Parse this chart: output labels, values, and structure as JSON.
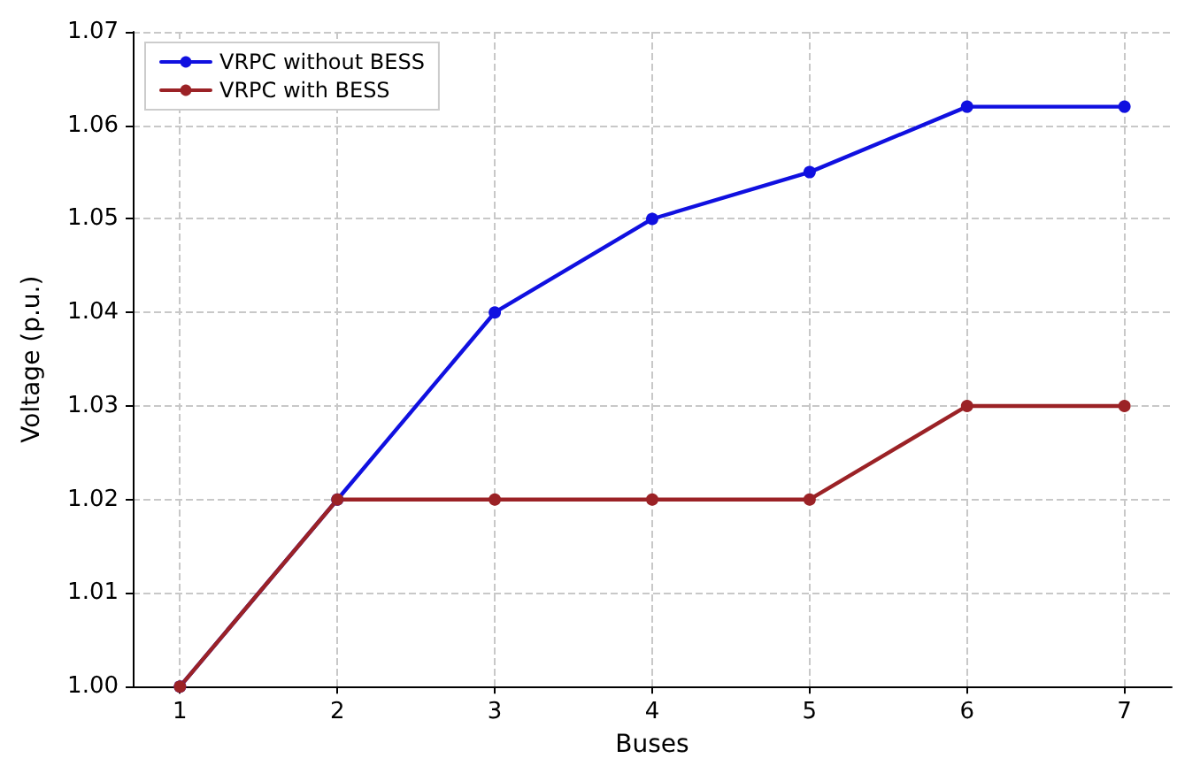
{
  "chart_data": {
    "type": "line",
    "xlabel": "Buses",
    "ylabel": "Voltage (p.u.)",
    "x": [
      1,
      2,
      3,
      4,
      5,
      6,
      7
    ],
    "series": [
      {
        "name": "VRPC without BESS",
        "color": "#1010e0",
        "values": [
          1.0,
          1.02,
          1.04,
          1.05,
          1.055,
          1.062,
          1.062
        ]
      },
      {
        "name": "VRPC with BESS",
        "color": "#9b2226",
        "values": [
          1.0,
          1.02,
          1.02,
          1.02,
          1.02,
          1.03,
          1.03
        ]
      }
    ],
    "xlim": [
      0.7,
      7.3
    ],
    "xticks": [
      1,
      2,
      3,
      4,
      5,
      6,
      7
    ],
    "ylim": [
      1.0,
      1.07
    ],
    "yticks": [
      {
        "value": 1.0,
        "label": "1.00"
      },
      {
        "value": 1.01,
        "label": "1.01"
      },
      {
        "value": 1.02,
        "label": "1.02"
      },
      {
        "value": 1.03,
        "label": "1.03"
      },
      {
        "value": 1.04,
        "label": "1.04"
      },
      {
        "value": 1.05,
        "label": "1.05"
      },
      {
        "value": 1.06,
        "label": "1.06"
      },
      {
        "value": 1.07,
        "label": "1.07"
      }
    ],
    "grid": true,
    "legend": "top left",
    "marker": "circle",
    "line_style": "solid"
  }
}
